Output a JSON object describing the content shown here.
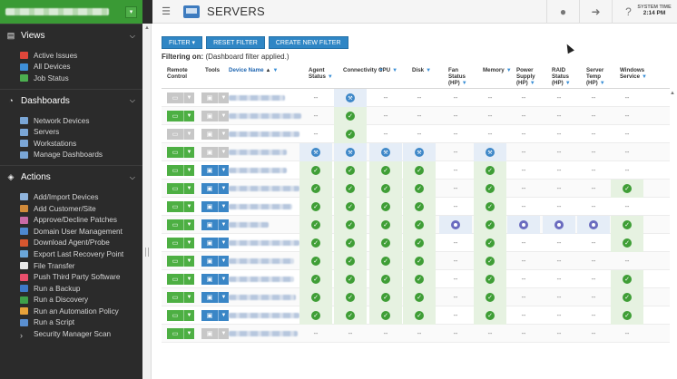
{
  "header": {
    "title": "SERVERS",
    "system_time_label": "SYSTEM TIME",
    "system_time": "2:14 PM"
  },
  "sidebar": {
    "sections": [
      {
        "title": "Views",
        "icon": "views-icon",
        "items": [
          {
            "label": "Active Issues",
            "icon": "active-issues-icon",
            "color": "#e0463a"
          },
          {
            "label": "All Devices",
            "icon": "all-devices-icon",
            "color": "#3e8fd8"
          },
          {
            "label": "Job Status",
            "icon": "job-status-icon",
            "color": "#4caf50"
          }
        ]
      },
      {
        "title": "Dashboards",
        "icon": "dashboards-icon",
        "items": [
          {
            "label": "Network Devices",
            "icon": "network-devices-icon",
            "color": "#7aa6d6"
          },
          {
            "label": "Servers",
            "icon": "servers-icon",
            "color": "#7aa6d6"
          },
          {
            "label": "Workstations",
            "icon": "workstations-icon",
            "color": "#7aa6d6"
          },
          {
            "label": "Manage Dashboards",
            "icon": "manage-dashboards-icon",
            "color": "#7aa6d6"
          }
        ]
      },
      {
        "title": "Actions",
        "icon": "actions-icon",
        "items": [
          {
            "label": "Add/Import Devices",
            "icon": "add-devices-icon",
            "color": "#8fb4dc"
          },
          {
            "label": "Add Customer/Site",
            "icon": "add-customer-icon",
            "color": "#d08a3a"
          },
          {
            "label": "Approve/Decline Patches",
            "icon": "patches-icon",
            "color": "#c86aa6"
          },
          {
            "label": "Domain User Management",
            "icon": "domain-user-icon",
            "color": "#4d88d0"
          },
          {
            "label": "Download Agent/Probe",
            "icon": "download-agent-icon",
            "color": "#d7572f"
          },
          {
            "label": "Export Last Recovery Point",
            "icon": "export-recovery-icon",
            "color": "#6aa6d8"
          },
          {
            "label": "File Transfer",
            "icon": "file-transfer-icon",
            "color": "#e8e8e8"
          },
          {
            "label": "Push Third Party Software",
            "icon": "push-software-icon",
            "color": "#e84f6c"
          },
          {
            "label": "Run a Backup",
            "icon": "run-backup-icon",
            "color": "#3d79c8"
          },
          {
            "label": "Run a Discovery",
            "icon": "run-discovery-icon",
            "color": "#3fa04a"
          },
          {
            "label": "Run an Automation Policy",
            "icon": "automation-policy-icon",
            "color": "#e6a13a"
          },
          {
            "label": "Run a Script",
            "icon": "run-script-icon",
            "color": "#5a8fd0"
          },
          {
            "label": "Security Manager Scan",
            "icon": "security-scan-icon",
            "color": "#cccccc"
          }
        ]
      }
    ]
  },
  "toolbar": {
    "filter_label": "FILTER ▾",
    "reset_label": "RESET FILTER",
    "create_label": "CREATE NEW FILTER"
  },
  "filtering": {
    "prefix": "Filtering on:",
    "text": "(Dashboard filter applied.)"
  },
  "table": {
    "columns": [
      {
        "label": "Remote\nControl",
        "filter": false
      },
      {
        "label": "Tools",
        "filter": false
      },
      {
        "label": "Device Name",
        "filter": true,
        "sort": "▲"
      },
      {
        "label": "Agent\nStatus",
        "filter": true
      },
      {
        "label": "Connectivity",
        "filter": true
      },
      {
        "label": "CPU",
        "filter": true
      },
      {
        "label": "Disk",
        "filter": true
      },
      {
        "label": "Fan\nStatus\n(HP)",
        "filter": true
      },
      {
        "label": "Memory",
        "filter": true
      },
      {
        "label": "Power\nSupply\n(HP)",
        "filter": true
      },
      {
        "label": "RAID\nStatus\n(HP)",
        "filter": true
      },
      {
        "label": "Server\nTemp\n(HP)",
        "filter": true
      },
      {
        "label": "Windows\nService",
        "filter": true
      }
    ],
    "dash": "--",
    "rows": [
      {
        "rc": "gray",
        "tools": "gray",
        "name_w": 62,
        "cells": [
          "-",
          "w",
          "-",
          "-",
          "-",
          "-",
          "-",
          "-",
          "-",
          "-"
        ]
      },
      {
        "rc": "green",
        "tools": "gray",
        "name_w": 80,
        "cells": [
          "-",
          "c",
          "-",
          "-",
          "-",
          "-",
          "-",
          "-",
          "-",
          "-"
        ]
      },
      {
        "rc": "gray",
        "tools": "gray",
        "name_w": 78,
        "cells": [
          "-",
          "c",
          "-",
          "-",
          "-",
          "-",
          "-",
          "-",
          "-",
          "-"
        ]
      },
      {
        "rc": "green",
        "tools": "gray",
        "name_w": 64,
        "cells": [
          "w",
          "w",
          "w",
          "w",
          "-",
          "w",
          "-",
          "-",
          "-",
          "-"
        ]
      },
      {
        "rc": "green",
        "tools": "blue",
        "name_w": 64,
        "cells": [
          "c",
          "c",
          "c",
          "c",
          "-",
          "c",
          "-",
          "-",
          "-",
          "-"
        ]
      },
      {
        "rc": "green",
        "tools": "blue",
        "name_w": 78,
        "cells": [
          "c",
          "c",
          "c",
          "c",
          "-",
          "c",
          "-",
          "-",
          "-",
          "c"
        ]
      },
      {
        "rc": "green",
        "tools": "blue",
        "name_w": 70,
        "cells": [
          "c",
          "c",
          "c",
          "c",
          "-",
          "c",
          "-",
          "-",
          "-",
          "-"
        ]
      },
      {
        "rc": "green",
        "tools": "blue",
        "name_w": 44,
        "cells": [
          "c",
          "c",
          "c",
          "c",
          "t",
          "c",
          "t",
          "t",
          "t",
          "c"
        ]
      },
      {
        "rc": "green",
        "tools": "blue",
        "name_w": 78,
        "cells": [
          "c",
          "c",
          "c",
          "c",
          "-",
          "c",
          "-",
          "-",
          "-",
          "c"
        ]
      },
      {
        "rc": "green",
        "tools": "blue",
        "name_w": 72,
        "cells": [
          "c",
          "c",
          "c",
          "c",
          "-",
          "c",
          "-",
          "-",
          "-",
          "-"
        ]
      },
      {
        "rc": "green",
        "tools": "blue",
        "name_w": 72,
        "cells": [
          "c",
          "c",
          "c",
          "c",
          "-",
          "c",
          "-",
          "-",
          "-",
          "c"
        ]
      },
      {
        "rc": "green",
        "tools": "blue",
        "name_w": 74,
        "cells": [
          "c",
          "c",
          "c",
          "c",
          "-",
          "c",
          "-",
          "-",
          "-",
          "c"
        ]
      },
      {
        "rc": "green",
        "tools": "blue",
        "name_w": 78,
        "cells": [
          "c",
          "c",
          "c",
          "c",
          "-",
          "c",
          "-",
          "-",
          "-",
          "c"
        ]
      },
      {
        "rc": "green",
        "tools": "gray",
        "name_w": 76,
        "cells": [
          "-",
          "-",
          "-",
          "-",
          "-",
          "-",
          "-",
          "-",
          "-",
          "-"
        ]
      }
    ]
  }
}
